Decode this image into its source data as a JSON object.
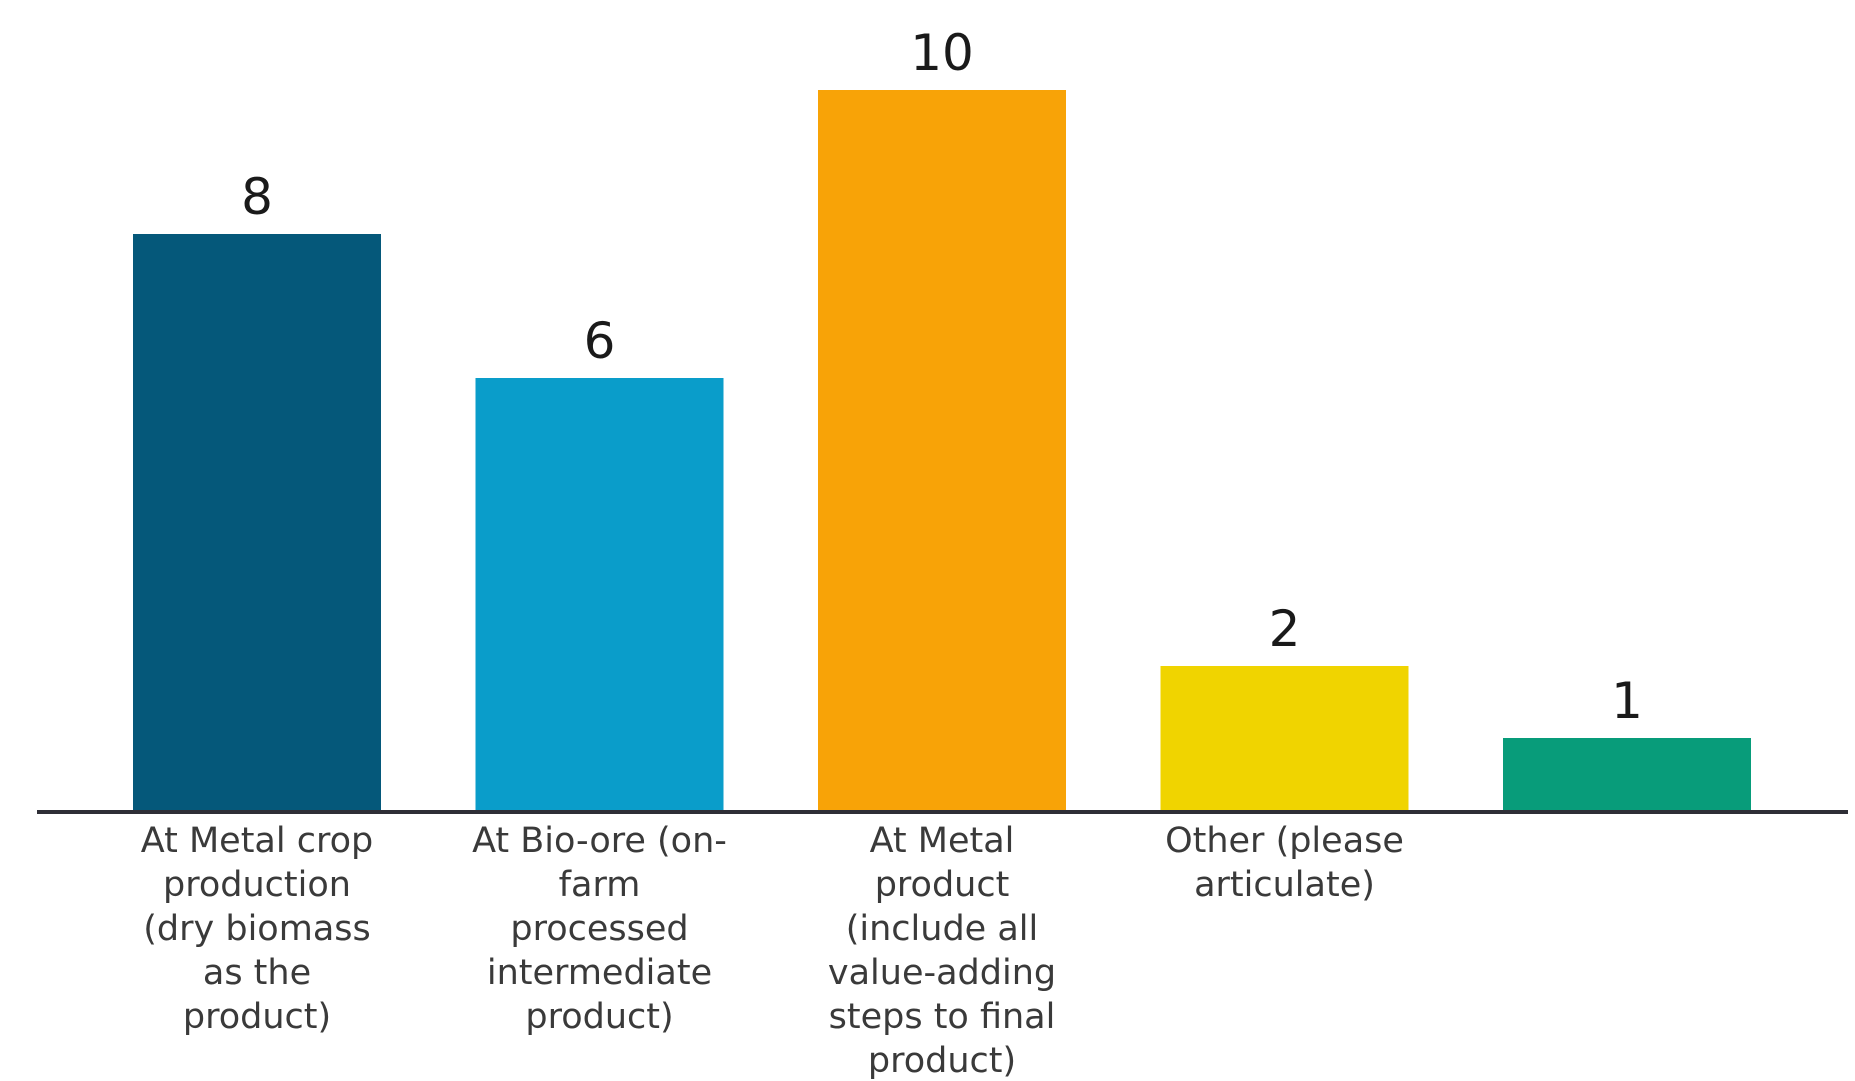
{
  "chart_data": {
    "type": "bar",
    "title": "",
    "xlabel": "",
    "ylabel": "",
    "ylim": [
      0,
      10
    ],
    "grid": false,
    "legend": "none",
    "categories": [
      [
        "At Metal crop",
        "production",
        "(dry biomass",
        "as the",
        "product)"
      ],
      [
        "At Bio-ore (on-",
        "farm",
        "processed",
        "intermediate",
        "product)"
      ],
      [
        "At Metal",
        "product",
        "(include all",
        "value-adding",
        "steps to final",
        "product)"
      ],
      [
        "Other (please",
        "articulate)"
      ],
      []
    ],
    "values": [
      8,
      6,
      10,
      2,
      1
    ],
    "colors": [
      "#05587a",
      "#0a9dca",
      "#f8a307",
      "#f0d400",
      "#089c7a"
    ],
    "axis_color": "#2e2e36"
  }
}
